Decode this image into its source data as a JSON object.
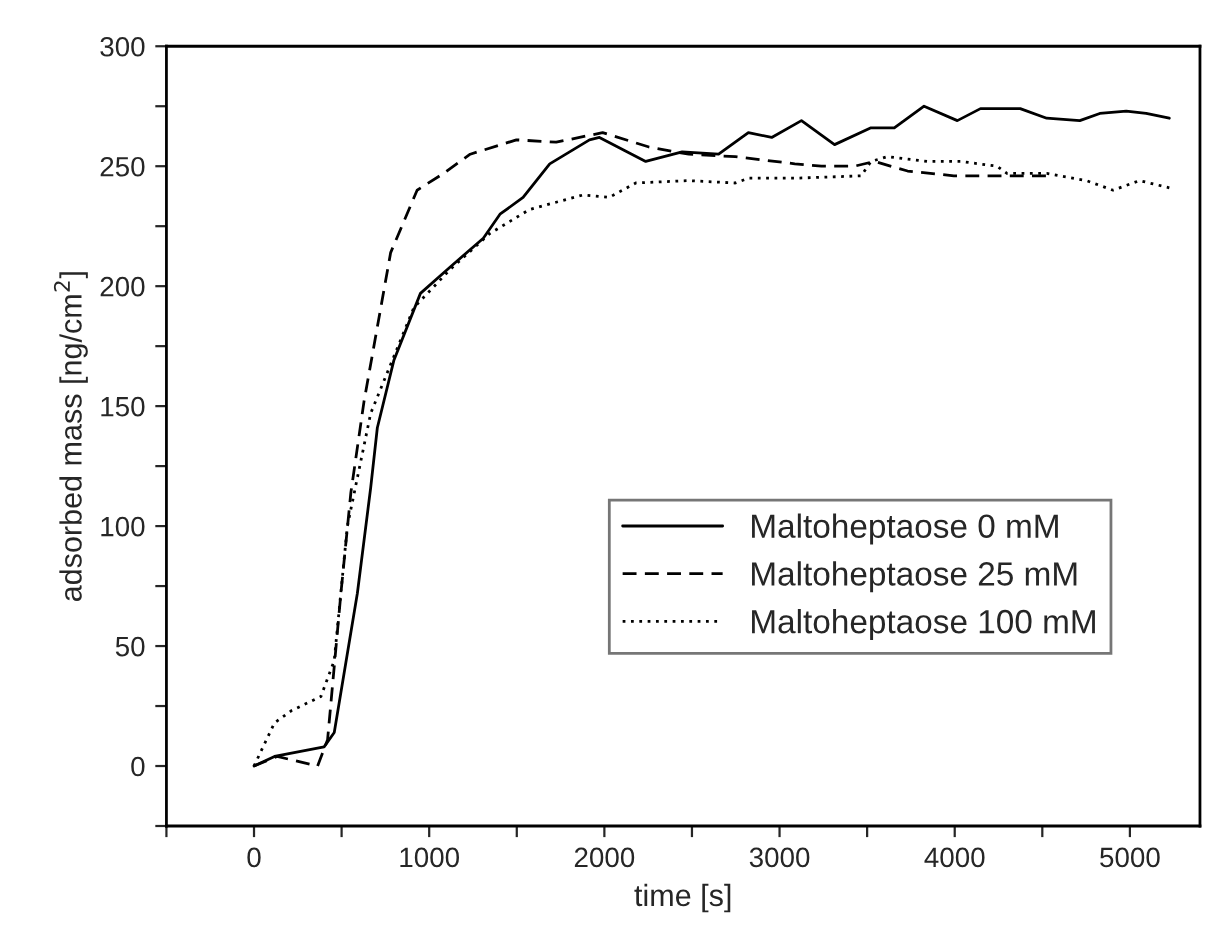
{
  "chart_data": {
    "type": "line",
    "xlabel": "time [s]",
    "ylabel": "adsorbed mass [ng/cm$^{2}$]",
    "xlim": [
      -500,
      5400
    ],
    "ylim": [
      -25,
      300
    ],
    "xticks": [
      {
        "value": -500,
        "label": null
      },
      0,
      {
        "value": 500,
        "label": null
      },
      1000,
      {
        "value": 1500,
        "label": null
      },
      2000,
      {
        "value": 2500,
        "label": null
      },
      3000,
      {
        "value": 3500,
        "label": null
      },
      4000,
      {
        "value": 4500,
        "label": null
      },
      5000
    ],
    "yticks": [
      {
        "value": -25,
        "label": null
      },
      0,
      {
        "value": 25,
        "label": null
      },
      50,
      {
        "value": 75,
        "label": null
      },
      100,
      {
        "value": 125,
        "label": null
      },
      150,
      {
        "value": 175,
        "label": null
      },
      200,
      {
        "value": 225,
        "label": null
      },
      250,
      {
        "value": 275,
        "label": null
      },
      300
    ],
    "grid": false,
    "legend": "lower right",
    "marker": "none",
    "series": [
      {
        "name": "Maltoheptaose 0 mM",
        "color": "#000000",
        "line_style": "solid",
        "x": [
          0,
          117,
          400,
          458,
          590,
          666,
          704,
          798,
          950,
          1120,
          1309,
          1404,
          1536,
          1688,
          1915,
          1972,
          2236,
          2444,
          2652,
          2822,
          2955,
          3125,
          3314,
          3522,
          3655,
          3825,
          4015,
          4147,
          4374,
          4525,
          4714,
          4828,
          4979,
          5093,
          5225
        ],
        "values": [
          0,
          4,
          8,
          14,
          72,
          116,
          141,
          169,
          197,
          208,
          220,
          230,
          237,
          251,
          261,
          262,
          252,
          256,
          255,
          264,
          262,
          269,
          259,
          266,
          266,
          275,
          269,
          274,
          274,
          270,
          269,
          272,
          273,
          272,
          270
        ]
      },
      {
        "name": "Maltoheptaose 25 mM",
        "color": "#000000",
        "line_style": "dashed",
        "x": [
          0,
          132,
          363,
          420,
          496,
          553,
          628,
          780,
          931,
          1082,
          1234,
          1498,
          1725,
          1990,
          2255,
          2482,
          2747,
          3087,
          3239,
          3428,
          3541,
          3731,
          3995,
          4222,
          4540
        ],
        "values": [
          0,
          4,
          0,
          11,
          72,
          114,
          152,
          214,
          240,
          247,
          255,
          261,
          260,
          264,
          258,
          255,
          254,
          251,
          250,
          250,
          252,
          248,
          246,
          246,
          246
        ]
      },
      {
        "name": "Maltoheptaose 100 mM",
        "color": "#000000",
        "line_style": "dotted",
        "x": [
          0,
          117,
          212,
          382,
          458,
          533,
          666,
          912,
          1120,
          1347,
          1574,
          1877,
          2028,
          2179,
          2482,
          2747,
          2822,
          3087,
          3466,
          3522,
          3617,
          3844,
          4033,
          4241,
          4298,
          4525,
          4752,
          4904,
          5055,
          5225
        ],
        "values": [
          0,
          18,
          23,
          29,
          44,
          100,
          147,
          191,
          207,
          222,
          232,
          238,
          237,
          243,
          244,
          243,
          245,
          245,
          246,
          252,
          254,
          252,
          252,
          250,
          247,
          247,
          244,
          240,
          244,
          241
        ]
      }
    ]
  }
}
